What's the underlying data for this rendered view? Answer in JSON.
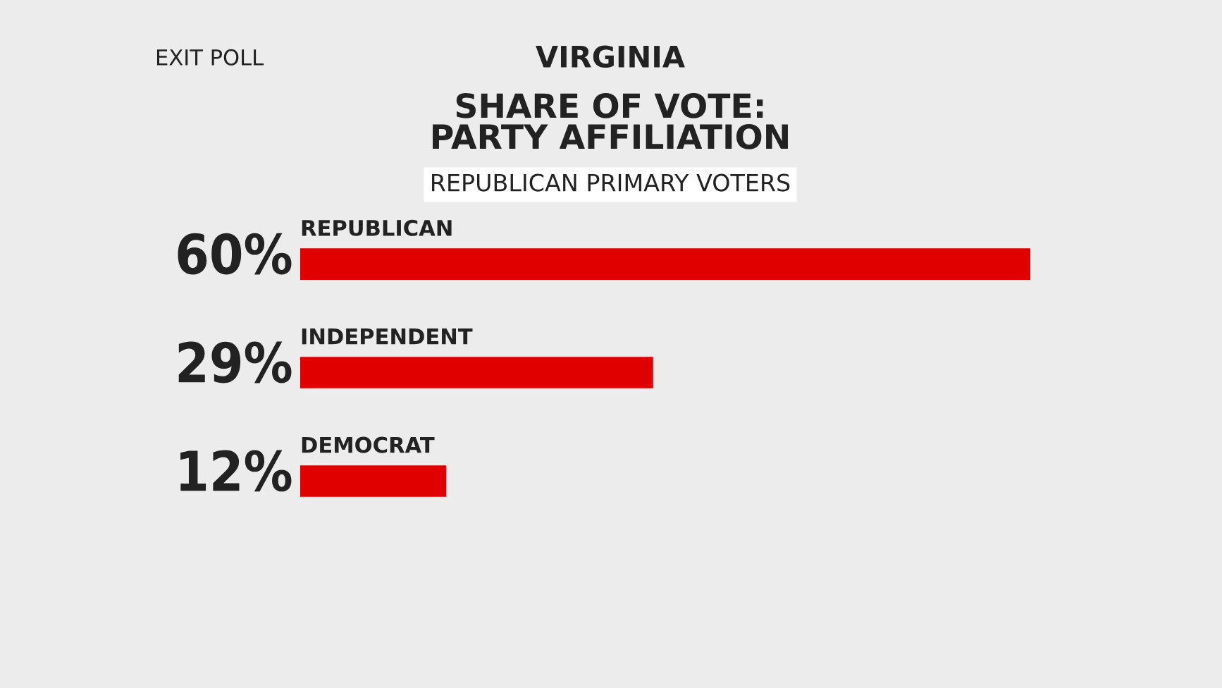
{
  "chart_data": {
    "type": "bar",
    "orientation": "horizontal",
    "title": "VIRGINIA",
    "subtitle": "SHARE OF VOTE:\nPARTY AFFILIATION",
    "annotations": [
      "REPUBLICAN PRIMARY VOTERS",
      "EXIT POLL"
    ],
    "categories": [
      "REPUBLICAN",
      "INDEPENDENT",
      "DEMOCRAT"
    ],
    "values": [
      60,
      29,
      12
    ],
    "value_labels": [
      "60%",
      "29%",
      "12%"
    ],
    "color": "#e00000",
    "xlim": [
      0,
      60
    ]
  }
}
